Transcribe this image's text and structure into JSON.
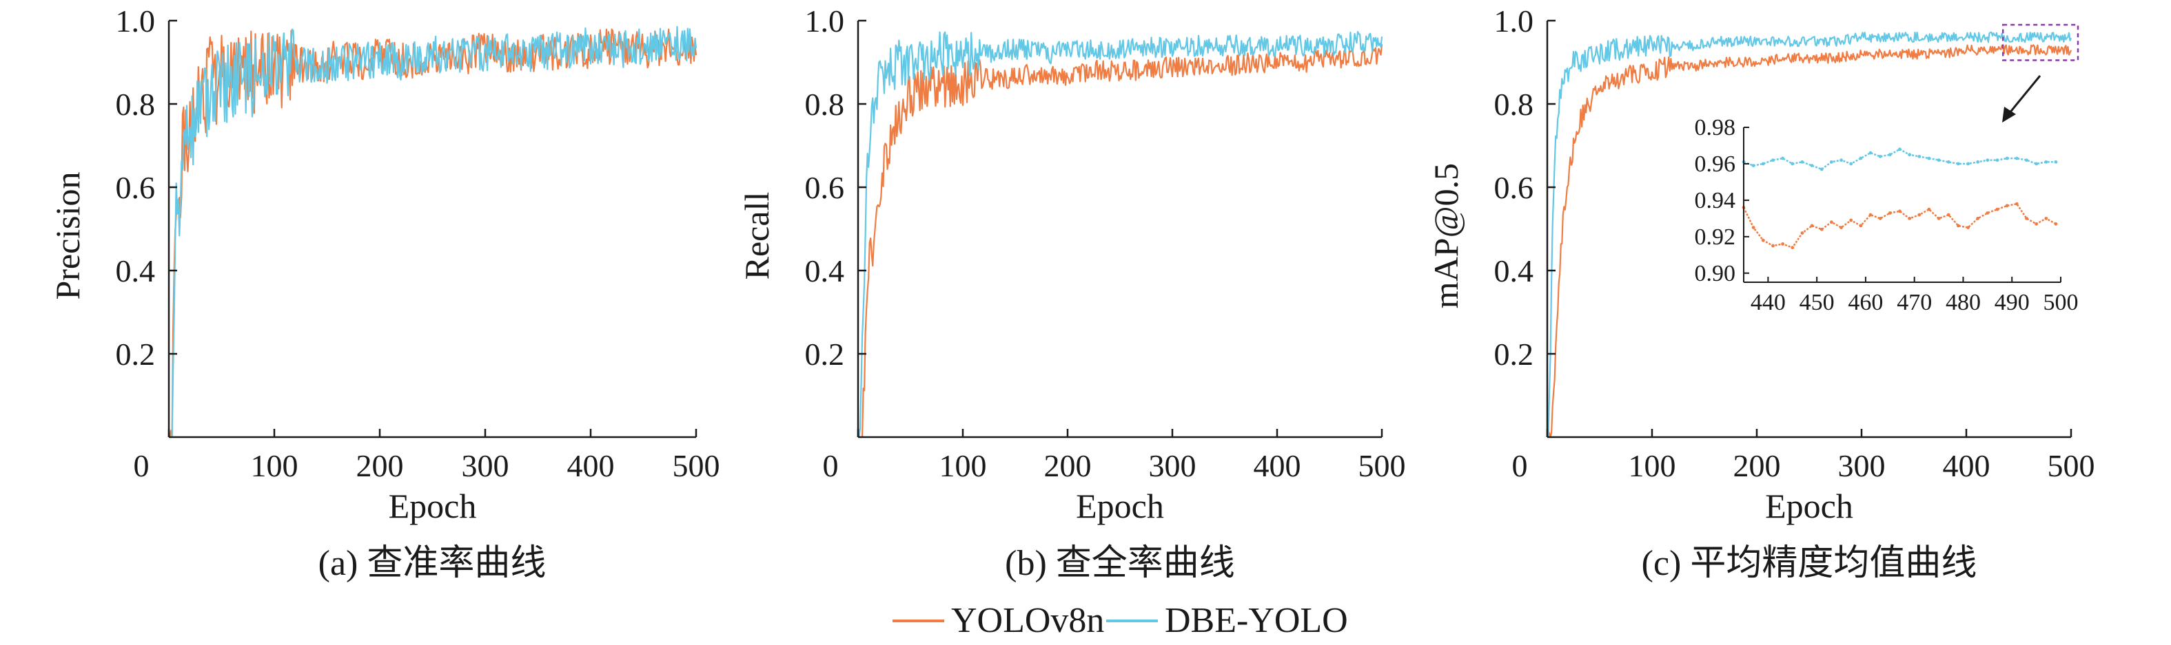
{
  "legend": {
    "items": [
      {
        "label": "YOLOv8n",
        "color": "#ef7d43"
      },
      {
        "label": "DBE-YOLO",
        "color": "#62c8e6"
      }
    ]
  },
  "chart_data": [
    {
      "type": "line",
      "caption": "(a) 查准率曲线",
      "xlabel": "Epoch",
      "ylabel": "Precision",
      "xlim": [
        0,
        500
      ],
      "ylim": [
        0,
        1.0
      ],
      "x_ticks": [
        0,
        100,
        200,
        300,
        400,
        500
      ],
      "y_ticks": [
        0.2,
        0.4,
        0.6,
        0.8,
        1.0
      ],
      "x_tick_labels": [
        "0",
        "100",
        "200",
        "300",
        "400",
        "500"
      ],
      "y_tick_labels": [
        "0.2",
        "0.4",
        "0.6",
        "0.8",
        "1.0"
      ],
      "series": [
        {
          "name": "YOLOv8n",
          "color": "#ef7d43",
          "x": [
            1,
            3,
            5,
            7,
            10,
            13,
            16,
            20,
            25,
            30,
            35,
            40,
            45,
            50,
            60,
            70,
            80,
            90,
            100,
            120,
            140,
            160,
            180,
            200,
            225,
            250,
            275,
            300,
            325,
            350,
            375,
            400,
            425,
            450,
            475,
            500
          ],
          "y": [
            0.0,
            0.03,
            0.35,
            0.6,
            0.55,
            0.7,
            0.75,
            0.72,
            0.8,
            0.86,
            0.83,
            0.87,
            0.85,
            0.88,
            0.86,
            0.9,
            0.87,
            0.9,
            0.88,
            0.9,
            0.89,
            0.91,
            0.9,
            0.92,
            0.9,
            0.92,
            0.91,
            0.93,
            0.92,
            0.92,
            0.93,
            0.93,
            0.94,
            0.93,
            0.94,
            0.92
          ]
        },
        {
          "name": "DBE-YOLO",
          "color": "#62c8e6",
          "x": [
            1,
            3,
            5,
            7,
            10,
            13,
            16,
            20,
            25,
            30,
            35,
            40,
            45,
            50,
            60,
            70,
            80,
            90,
            100,
            120,
            140,
            160,
            180,
            200,
            225,
            250,
            275,
            300,
            325,
            350,
            375,
            400,
            425,
            450,
            475,
            500
          ],
          "y": [
            0.0,
            0.02,
            0.3,
            0.55,
            0.52,
            0.68,
            0.72,
            0.7,
            0.78,
            0.82,
            0.8,
            0.85,
            0.83,
            0.86,
            0.85,
            0.88,
            0.86,
            0.89,
            0.87,
            0.9,
            0.89,
            0.9,
            0.9,
            0.91,
            0.9,
            0.92,
            0.91,
            0.92,
            0.93,
            0.92,
            0.93,
            0.94,
            0.93,
            0.94,
            0.95,
            0.94
          ]
        }
      ]
    },
    {
      "type": "line",
      "caption": "(b) 查全率曲线",
      "xlabel": "Epoch",
      "ylabel": "Recall",
      "xlim": [
        0,
        500
      ],
      "ylim": [
        0,
        1.0
      ],
      "x_ticks": [
        0,
        100,
        200,
        300,
        400,
        500
      ],
      "y_ticks": [
        0.2,
        0.4,
        0.6,
        0.8,
        1.0
      ],
      "x_tick_labels": [
        "0",
        "100",
        "200",
        "300",
        "400",
        "500"
      ],
      "y_tick_labels": [
        "0.2",
        "0.4",
        "0.6",
        "0.8",
        "1.0"
      ],
      "series": [
        {
          "name": "YOLOv8n",
          "color": "#ef7d43",
          "x": [
            1,
            3,
            5,
            8,
            12,
            16,
            20,
            25,
            30,
            35,
            40,
            45,
            50,
            60,
            70,
            80,
            90,
            100,
            120,
            140,
            160,
            180,
            200,
            225,
            250,
            275,
            300,
            325,
            350,
            375,
            400,
            425,
            450,
            475,
            500
          ],
          "y": [
            0.0,
            0.0,
            0.08,
            0.3,
            0.45,
            0.48,
            0.6,
            0.65,
            0.7,
            0.75,
            0.78,
            0.8,
            0.82,
            0.83,
            0.84,
            0.84,
            0.85,
            0.85,
            0.86,
            0.86,
            0.87,
            0.87,
            0.87,
            0.88,
            0.88,
            0.88,
            0.89,
            0.89,
            0.89,
            0.9,
            0.9,
            0.9,
            0.91,
            0.91,
            0.92
          ]
        },
        {
          "name": "DBE-YOLO",
          "color": "#62c8e6",
          "x": [
            1,
            3,
            5,
            8,
            12,
            16,
            20,
            25,
            30,
            35,
            40,
            45,
            50,
            60,
            70,
            80,
            90,
            100,
            120,
            140,
            160,
            180,
            200,
            225,
            250,
            275,
            300,
            325,
            350,
            375,
            400,
            425,
            450,
            475,
            500
          ],
          "y": [
            0.0,
            0.15,
            0.3,
            0.6,
            0.75,
            0.82,
            0.86,
            0.87,
            0.88,
            0.89,
            0.9,
            0.9,
            0.9,
            0.91,
            0.91,
            0.92,
            0.92,
            0.92,
            0.92,
            0.93,
            0.93,
            0.92,
            0.93,
            0.93,
            0.93,
            0.94,
            0.93,
            0.94,
            0.94,
            0.94,
            0.94,
            0.94,
            0.94,
            0.95,
            0.94
          ]
        }
      ]
    },
    {
      "type": "line",
      "caption": "(c) 平均精度均值曲线",
      "xlabel": "Epoch",
      "ylabel": "mAP@0.5",
      "xlim": [
        0,
        500
      ],
      "ylim": [
        0,
        1.0
      ],
      "x_ticks": [
        0,
        100,
        200,
        300,
        400,
        500
      ],
      "y_ticks": [
        0.2,
        0.4,
        0.6,
        0.8,
        1.0
      ],
      "x_tick_labels": [
        "0",
        "100",
        "200",
        "300",
        "400",
        "500"
      ],
      "y_tick_labels": [
        "0.2",
        "0.4",
        "0.6",
        "0.8",
        "1.0"
      ],
      "series": [
        {
          "name": "YOLOv8n",
          "color": "#ef7d43",
          "x": [
            1,
            3,
            5,
            8,
            10,
            13,
            16,
            20,
            25,
            30,
            35,
            40,
            45,
            50,
            60,
            70,
            80,
            90,
            100,
            120,
            140,
            160,
            180,
            200,
            225,
            250,
            275,
            300,
            325,
            350,
            375,
            400,
            425,
            450,
            475,
            500
          ],
          "y": [
            0.0,
            0.0,
            0.05,
            0.2,
            0.3,
            0.45,
            0.55,
            0.62,
            0.7,
            0.75,
            0.78,
            0.8,
            0.82,
            0.84,
            0.85,
            0.86,
            0.87,
            0.87,
            0.88,
            0.89,
            0.89,
            0.9,
            0.9,
            0.9,
            0.91,
            0.91,
            0.91,
            0.92,
            0.92,
            0.92,
            0.92,
            0.93,
            0.93,
            0.93,
            0.93,
            0.93
          ]
        },
        {
          "name": "DBE-YOLO",
          "color": "#62c8e6",
          "x": [
            1,
            3,
            5,
            8,
            10,
            13,
            16,
            20,
            25,
            30,
            35,
            40,
            45,
            50,
            60,
            70,
            80,
            90,
            100,
            120,
            140,
            160,
            180,
            200,
            225,
            250,
            275,
            300,
            325,
            350,
            375,
            400,
            425,
            450,
            475,
            500
          ],
          "y": [
            0.0,
            0.2,
            0.5,
            0.7,
            0.78,
            0.83,
            0.86,
            0.88,
            0.9,
            0.9,
            0.91,
            0.91,
            0.92,
            0.92,
            0.93,
            0.93,
            0.93,
            0.94,
            0.94,
            0.94,
            0.94,
            0.95,
            0.95,
            0.95,
            0.95,
            0.95,
            0.95,
            0.96,
            0.96,
            0.96,
            0.96,
            0.96,
            0.96,
            0.96,
            0.96,
            0.96
          ]
        }
      ],
      "inset": {
        "xlim": [
          435,
          500
        ],
        "ylim": [
          0.895,
          0.98
        ],
        "x_ticks": [
          440,
          450,
          460,
          470,
          480,
          490,
          500
        ],
        "y_ticks": [
          0.9,
          0.92,
          0.94,
          0.96,
          0.98
        ],
        "x_tick_labels": [
          "440",
          "450",
          "460",
          "470",
          "480",
          "490",
          "500"
        ],
        "y_tick_labels": [
          "0.90",
          "0.92",
          "0.94",
          "0.96",
          "0.98"
        ],
        "series": [
          {
            "name": "YOLOv8n",
            "color": "#ef7d43",
            "x": [
              435,
              437,
              439,
              441,
              443,
              445,
              447,
              449,
              451,
              453,
              455,
              457,
              459,
              461,
              463,
              465,
              467,
              469,
              471,
              473,
              475,
              477,
              479,
              481,
              483,
              485,
              487,
              489,
              491,
              493,
              495,
              497,
              499
            ],
            "y": [
              0.936,
              0.925,
              0.918,
              0.915,
              0.916,
              0.914,
              0.922,
              0.926,
              0.924,
              0.928,
              0.925,
              0.929,
              0.926,
              0.932,
              0.93,
              0.933,
              0.934,
              0.93,
              0.932,
              0.935,
              0.93,
              0.932,
              0.926,
              0.925,
              0.93,
              0.933,
              0.935,
              0.937,
              0.938,
              0.93,
              0.927,
              0.93,
              0.927
            ]
          },
          {
            "name": "DBE-YOLO",
            "color": "#62c8e6",
            "x": [
              435,
              437,
              439,
              441,
              443,
              445,
              447,
              449,
              451,
              453,
              455,
              457,
              459,
              461,
              463,
              465,
              467,
              469,
              471,
              473,
              475,
              477,
              479,
              481,
              483,
              485,
              487,
              489,
              491,
              493,
              495,
              497,
              499
            ],
            "y": [
              0.961,
              0.959,
              0.96,
              0.962,
              0.963,
              0.96,
              0.961,
              0.959,
              0.957,
              0.961,
              0.962,
              0.96,
              0.963,
              0.966,
              0.964,
              0.965,
              0.968,
              0.965,
              0.964,
              0.963,
              0.962,
              0.961,
              0.96,
              0.96,
              0.961,
              0.962,
              0.962,
              0.963,
              0.963,
              0.962,
              0.96,
              0.961,
              0.961
            ]
          }
        ]
      }
    }
  ]
}
